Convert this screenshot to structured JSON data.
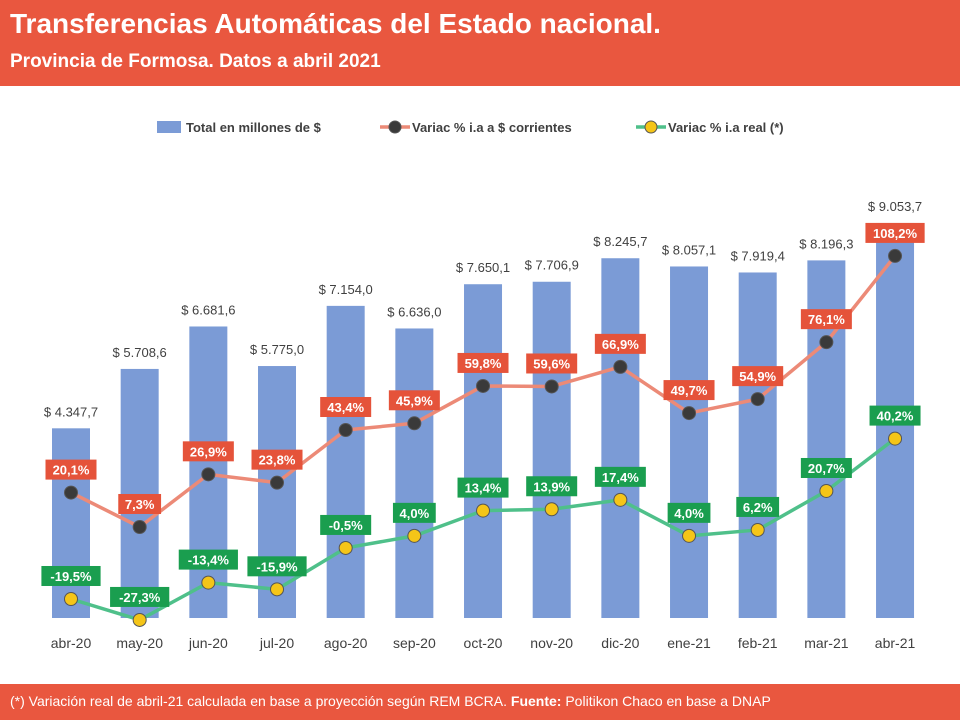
{
  "header": {
    "title": "Transferencias Automáticas del Estado nacional.",
    "subtitle": "Provincia de Formosa. Datos a abril 2021"
  },
  "footer": {
    "note": "(*) Variación real de abril-21 calculada en base a proyección según REM BCRA.",
    "source_label": "Fuente:",
    "source_text": "Politikon Chaco en base a DNAP"
  },
  "colors": {
    "header_bg": "#e9573f",
    "bar": "#7b9bd6",
    "nominal_line": "#ec8a77",
    "nominal_label_bg": "#e5533a",
    "nominal_marker": "#3a3a3a",
    "real_line": "#4fc08a",
    "real_label_bg": "#1a9e4f",
    "real_marker": "#f5c518"
  },
  "chart_data": {
    "type": "bar",
    "categories": [
      "abr-20",
      "may-20",
      "jun-20",
      "jul-20",
      "ago-20",
      "sep-20",
      "oct-20",
      "nov-20",
      "dic-20",
      "ene-21",
      "feb-21",
      "mar-21",
      "abr-21"
    ],
    "legend_position": "top",
    "grid": false,
    "series": [
      {
        "name": "Total en millones de $",
        "type": "bar",
        "values": [
          4347.7,
          5708.6,
          6681.6,
          5775.0,
          7154.0,
          6636.0,
          7650.1,
          7706.9,
          8245.7,
          8057.1,
          7919.4,
          8196.3,
          9053.7
        ],
        "labels": [
          "$ 4.347,7",
          "$ 5.708,6",
          "$ 6.681,6",
          "$ 5.775,0",
          "$ 7.154,0",
          "$ 6.636,0",
          "$ 7.650,1",
          "$ 7.706,9",
          "$ 8.245,7",
          "$ 8.057,1",
          "$ 7.919,4",
          "$ 8.196,3",
          "$ 9.053,7"
        ]
      },
      {
        "name": "Variac % i.a a $ corrientes",
        "type": "line",
        "values": [
          20.1,
          7.3,
          26.9,
          23.8,
          43.4,
          45.9,
          59.8,
          59.6,
          66.9,
          49.7,
          54.9,
          76.1,
          108.2
        ],
        "labels": [
          "20,1%",
          "7,3%",
          "26,9%",
          "23,8%",
          "43,4%",
          "45,9%",
          "59,8%",
          "59,6%",
          "66,9%",
          "49,7%",
          "54,9%",
          "76,1%",
          "108,2%"
        ]
      },
      {
        "name": "Variac % i.a real (*)",
        "type": "line",
        "values": [
          -19.5,
          -27.3,
          -13.4,
          -15.9,
          -0.5,
          4.0,
          13.4,
          13.9,
          17.4,
          4.0,
          6.2,
          20.7,
          40.2
        ],
        "labels": [
          "-19,5%",
          "-27,3%",
          "-13,4%",
          "-15,9%",
          "-0,5%",
          "4,0%",
          "13,4%",
          "13,9%",
          "17,4%",
          "4,0%",
          "6,2%",
          "20,7%",
          "40,2%"
        ]
      }
    ]
  }
}
